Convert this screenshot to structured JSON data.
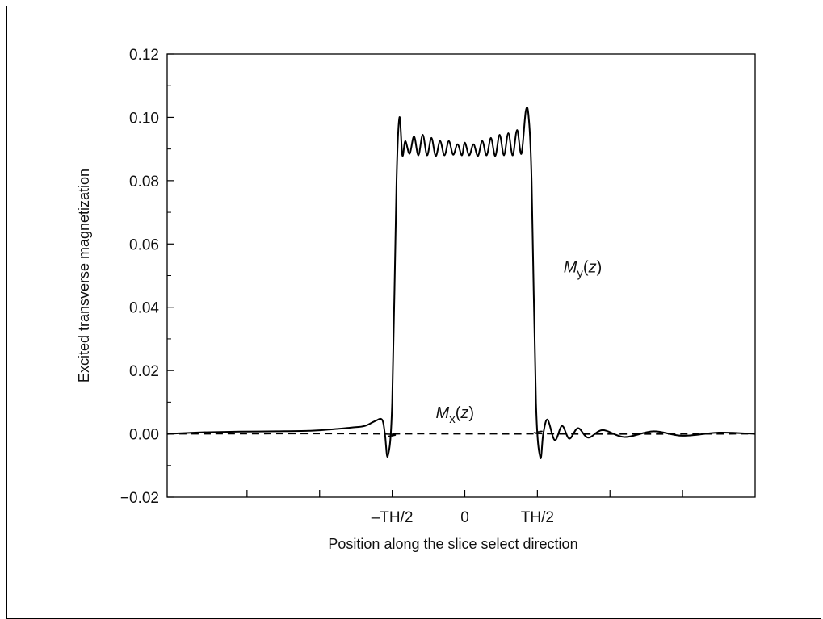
{
  "chart_data": {
    "type": "line",
    "xlabel": "Position along the slice select direction",
    "ylabel": "Excited transverse magnetization",
    "x_unit_note": "x in units of TH (slice thickness); x tick labels are symbolic",
    "xlim": [
      -2.05,
      2.0
    ],
    "ylim": [
      -0.02,
      0.12
    ],
    "y_ticks": [
      -0.02,
      0.0,
      0.02,
      0.04,
      0.06,
      0.08,
      0.1,
      0.12
    ],
    "y_tick_labels": [
      "−0.02",
      "0.00",
      "0.02",
      "0.04",
      "0.06",
      "0.08",
      "0.10",
      "0.12"
    ],
    "x_ticks": [
      -0.5,
      0,
      0.5
    ],
    "x_tick_labels": [
      "–TH/2",
      "0",
      "TH/2"
    ],
    "x_minor_ticks": [
      -1.5,
      -1.0,
      1.0,
      1.5
    ],
    "grid": false,
    "legend": "none",
    "annotations": [
      {
        "series": "My",
        "text_main": "M",
        "text_sub": "y",
        "text_arg": "(z)",
        "x": 0.68,
        "y": 0.051
      },
      {
        "series": "Mx",
        "text_main": "M",
        "text_sub": "x",
        "text_arg": "(z)",
        "x": -0.2,
        "y": 0.005
      }
    ],
    "series": [
      {
        "id": "My",
        "style": "solid",
        "color": "#000000",
        "points": [
          [
            -2.05,
            0.0
          ],
          [
            -1.8,
            0.0005
          ],
          [
            -1.55,
            0.0007
          ],
          [
            -1.3,
            0.0008
          ],
          [
            -1.05,
            0.001
          ],
          [
            -0.9,
            0.0015
          ],
          [
            -0.78,
            0.002
          ],
          [
            -0.69,
            0.0025
          ],
          [
            -0.62,
            0.004
          ],
          [
            -0.57,
            0.0045
          ],
          [
            -0.55,
            0.0
          ],
          [
            -0.53,
            -0.007
          ],
          [
            -0.5,
            0.01
          ],
          [
            -0.47,
            0.08
          ],
          [
            -0.45,
            0.1
          ],
          [
            -0.43,
            0.088
          ],
          [
            -0.41,
            0.0925
          ],
          [
            -0.38,
            0.0885
          ],
          [
            -0.35,
            0.094
          ],
          [
            -0.32,
            0.088
          ],
          [
            -0.29,
            0.0945
          ],
          [
            -0.26,
            0.088
          ],
          [
            -0.23,
            0.0935
          ],
          [
            -0.2,
            0.0878
          ],
          [
            -0.17,
            0.0925
          ],
          [
            -0.14,
            0.088
          ],
          [
            -0.11,
            0.0925
          ],
          [
            -0.08,
            0.0882
          ],
          [
            -0.05,
            0.0915
          ],
          [
            -0.02,
            0.088
          ],
          [
            0.0,
            0.092
          ],
          [
            0.03,
            0.088
          ],
          [
            0.06,
            0.0915
          ],
          [
            0.09,
            0.0878
          ],
          [
            0.12,
            0.0925
          ],
          [
            0.15,
            0.088
          ],
          [
            0.18,
            0.0935
          ],
          [
            0.21,
            0.0878
          ],
          [
            0.24,
            0.0945
          ],
          [
            0.27,
            0.088
          ],
          [
            0.3,
            0.095
          ],
          [
            0.33,
            0.088
          ],
          [
            0.36,
            0.096
          ],
          [
            0.39,
            0.0885
          ],
          [
            0.42,
            0.102
          ],
          [
            0.44,
            0.1
          ],
          [
            0.46,
            0.08
          ],
          [
            0.49,
            0.01
          ],
          [
            0.52,
            -0.0075
          ],
          [
            0.54,
            0.0
          ],
          [
            0.57,
            0.0045
          ],
          [
            0.62,
            -0.002
          ],
          [
            0.67,
            0.0025
          ],
          [
            0.72,
            -0.0015
          ],
          [
            0.78,
            0.0018
          ],
          [
            0.85,
            -0.0012
          ],
          [
            0.95,
            0.0012
          ],
          [
            1.1,
            -0.001
          ],
          [
            1.3,
            0.0008
          ],
          [
            1.5,
            -0.0006
          ],
          [
            1.75,
            0.0004
          ],
          [
            2.0,
            0.0
          ]
        ]
      },
      {
        "id": "Mx",
        "style": "dashed",
        "color": "#000000",
        "points": [
          [
            -2.05,
            0.0
          ],
          [
            -0.6,
            0.0
          ],
          [
            -0.53,
            -0.0008
          ],
          [
            -0.48,
            -0.0004
          ],
          [
            -0.44,
            0.0
          ],
          [
            0.44,
            0.0
          ],
          [
            0.48,
            0.0004
          ],
          [
            0.53,
            0.0008
          ],
          [
            0.6,
            0.0
          ],
          [
            2.0,
            0.0
          ]
        ]
      }
    ]
  }
}
